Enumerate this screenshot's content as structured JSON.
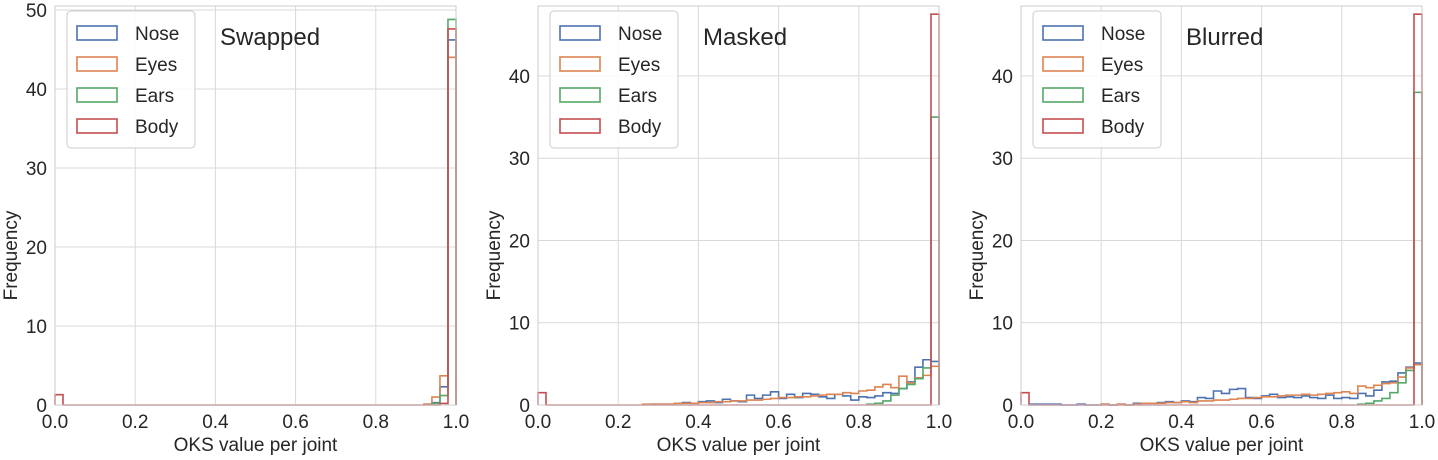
{
  "colors": {
    "Nose": "#4c72b0",
    "Eyes": "#dd8452",
    "Ears": "#55a868",
    "Body": "#c44e52",
    "grid": "#d9d9d9",
    "spine": "#cccccc"
  },
  "chart_data": [
    {
      "type": "histogram",
      "title": "Swapped",
      "xlabel": "OKS value per joint",
      "ylabel": "Frequency",
      "xlim": [
        0.0,
        1.0
      ],
      "ylim": [
        0,
        50.5
      ],
      "xticks": [
        "0.0",
        "0.2",
        "0.4",
        "0.6",
        "0.8",
        "1.0"
      ],
      "yticks": [
        "0",
        "10",
        "20",
        "30",
        "40",
        "50"
      ],
      "grid": true,
      "legend_position": "top-left",
      "bin_width": 0.02,
      "series": [
        {
          "name": "Nose",
          "values": [
            [
              0.92,
              0.1
            ],
            [
              0.94,
              0.3
            ],
            [
              0.96,
              2.3
            ],
            [
              0.98,
              46.2
            ]
          ]
        },
        {
          "name": "Eyes",
          "values": [
            [
              0.92,
              0.1
            ],
            [
              0.94,
              1.0
            ],
            [
              0.96,
              3.7
            ],
            [
              0.98,
              44.0
            ]
          ]
        },
        {
          "name": "Ears",
          "values": [
            [
              0.94,
              0.2
            ],
            [
              0.96,
              1.2
            ],
            [
              0.98,
              48.8
            ]
          ]
        },
        {
          "name": "Body",
          "values": [
            [
              0.0,
              1.3
            ],
            [
              0.96,
              0.2
            ],
            [
              0.98,
              47.6
            ]
          ]
        }
      ]
    },
    {
      "type": "histogram",
      "title": "Masked",
      "xlabel": "OKS value per joint",
      "ylabel": "Frequency",
      "xlim": [
        0.0,
        1.0
      ],
      "ylim": [
        0,
        48.5
      ],
      "xticks": [
        "0.0",
        "0.2",
        "0.4",
        "0.6",
        "0.8",
        "1.0"
      ],
      "yticks": [
        "0",
        "10",
        "20",
        "30",
        "40"
      ],
      "grid": true,
      "legend_position": "top-left",
      "bin_width": 0.02,
      "series": [
        {
          "name": "Nose",
          "values": [
            [
              0.28,
              0.1
            ],
            [
              0.3,
              0.1
            ],
            [
              0.32,
              0.1
            ],
            [
              0.34,
              0.2
            ],
            [
              0.36,
              0.3
            ],
            [
              0.38,
              0.2
            ],
            [
              0.4,
              0.4
            ],
            [
              0.42,
              0.5
            ],
            [
              0.44,
              0.3
            ],
            [
              0.46,
              0.7
            ],
            [
              0.48,
              0.5
            ],
            [
              0.5,
              0.4
            ],
            [
              0.52,
              1.2
            ],
            [
              0.54,
              0.8
            ],
            [
              0.56,
              1.2
            ],
            [
              0.58,
              1.6
            ],
            [
              0.6,
              0.8
            ],
            [
              0.62,
              1.3
            ],
            [
              0.64,
              0.9
            ],
            [
              0.66,
              1.4
            ],
            [
              0.68,
              1.3
            ],
            [
              0.7,
              1.0
            ],
            [
              0.72,
              0.8
            ],
            [
              0.74,
              1.3
            ],
            [
              0.76,
              1.1
            ],
            [
              0.78,
              0.6
            ],
            [
              0.8,
              1.0
            ],
            [
              0.82,
              0.9
            ],
            [
              0.84,
              1.1
            ],
            [
              0.86,
              1.5
            ],
            [
              0.88,
              1.4
            ],
            [
              0.9,
              2.0
            ],
            [
              0.92,
              2.8
            ],
            [
              0.94,
              4.6
            ],
            [
              0.96,
              5.5
            ],
            [
              0.98,
              5.3
            ]
          ]
        },
        {
          "name": "Eyes",
          "values": [
            [
              0.26,
              0.1
            ],
            [
              0.28,
              0.1
            ],
            [
              0.3,
              0.1
            ],
            [
              0.32,
              0.1
            ],
            [
              0.34,
              0.2
            ],
            [
              0.36,
              0.2
            ],
            [
              0.38,
              0.2
            ],
            [
              0.4,
              0.3
            ],
            [
              0.42,
              0.3
            ],
            [
              0.44,
              0.4
            ],
            [
              0.46,
              0.4
            ],
            [
              0.48,
              0.5
            ],
            [
              0.5,
              0.5
            ],
            [
              0.52,
              0.6
            ],
            [
              0.54,
              0.6
            ],
            [
              0.56,
              0.7
            ],
            [
              0.58,
              0.8
            ],
            [
              0.6,
              0.9
            ],
            [
              0.62,
              0.9
            ],
            [
              0.64,
              1.0
            ],
            [
              0.66,
              1.0
            ],
            [
              0.68,
              1.1
            ],
            [
              0.7,
              1.2
            ],
            [
              0.72,
              1.3
            ],
            [
              0.74,
              1.3
            ],
            [
              0.76,
              1.5
            ],
            [
              0.78,
              1.4
            ],
            [
              0.8,
              1.7
            ],
            [
              0.82,
              1.8
            ],
            [
              0.84,
              2.2
            ],
            [
              0.86,
              2.5
            ],
            [
              0.88,
              2.1
            ],
            [
              0.9,
              3.5
            ],
            [
              0.92,
              2.7
            ],
            [
              0.94,
              3.3
            ],
            [
              0.96,
              3.6
            ],
            [
              0.98,
              4.7
            ]
          ]
        },
        {
          "name": "Ears",
          "values": [
            [
              0.82,
              0.1
            ],
            [
              0.84,
              0.2
            ],
            [
              0.86,
              0.5
            ],
            [
              0.88,
              1.2
            ],
            [
              0.9,
              2.0
            ],
            [
              0.92,
              2.5
            ],
            [
              0.94,
              3.2
            ],
            [
              0.96,
              4.5
            ],
            [
              0.98,
              35.0
            ]
          ]
        },
        {
          "name": "Body",
          "values": [
            [
              0.0,
              1.5
            ],
            [
              0.98,
              47.5
            ]
          ]
        }
      ]
    },
    {
      "type": "histogram",
      "title": "Blurred",
      "xlabel": "OKS value per joint",
      "ylabel": "Frequency",
      "xlim": [
        0.0,
        1.0
      ],
      "ylim": [
        0,
        48.5
      ],
      "xticks": [
        "0.0",
        "0.2",
        "0.4",
        "0.6",
        "0.8",
        "1.0"
      ],
      "yticks": [
        "0",
        "10",
        "20",
        "30",
        "40"
      ],
      "grid": true,
      "legend_position": "top-left",
      "bin_width": 0.02,
      "series": [
        {
          "name": "Nose",
          "values": [
            [
              0.02,
              0.1
            ],
            [
              0.04,
              0.1
            ],
            [
              0.06,
              0.1
            ],
            [
              0.08,
              0.1
            ],
            [
              0.14,
              0.1
            ],
            [
              0.2,
              0.1
            ],
            [
              0.24,
              0.1
            ],
            [
              0.28,
              0.2
            ],
            [
              0.3,
              0.2
            ],
            [
              0.32,
              0.2
            ],
            [
              0.34,
              0.3
            ],
            [
              0.36,
              0.4
            ],
            [
              0.38,
              0.3
            ],
            [
              0.4,
              0.5
            ],
            [
              0.42,
              0.4
            ],
            [
              0.44,
              0.9
            ],
            [
              0.46,
              0.8
            ],
            [
              0.48,
              1.7
            ],
            [
              0.5,
              1.4
            ],
            [
              0.52,
              1.9
            ],
            [
              0.54,
              2.0
            ],
            [
              0.56,
              0.9
            ],
            [
              0.58,
              0.8
            ],
            [
              0.6,
              1.1
            ],
            [
              0.62,
              1.3
            ],
            [
              0.64,
              0.9
            ],
            [
              0.66,
              1.0
            ],
            [
              0.68,
              0.9
            ],
            [
              0.7,
              1.1
            ],
            [
              0.72,
              0.9
            ],
            [
              0.74,
              0.8
            ],
            [
              0.76,
              1.2
            ],
            [
              0.78,
              0.8
            ],
            [
              0.8,
              0.9
            ],
            [
              0.82,
              0.8
            ],
            [
              0.84,
              1.4
            ],
            [
              0.86,
              1.1
            ],
            [
              0.88,
              1.8
            ],
            [
              0.9,
              2.8
            ],
            [
              0.92,
              2.9
            ],
            [
              0.94,
              3.9
            ],
            [
              0.96,
              4.6
            ],
            [
              0.98,
              5.1
            ]
          ]
        },
        {
          "name": "Eyes",
          "values": [
            [
              0.2,
              0.1
            ],
            [
              0.24,
              0.1
            ],
            [
              0.28,
              0.1
            ],
            [
              0.3,
              0.2
            ],
            [
              0.32,
              0.2
            ],
            [
              0.34,
              0.2
            ],
            [
              0.36,
              0.3
            ],
            [
              0.38,
              0.3
            ],
            [
              0.4,
              0.4
            ],
            [
              0.42,
              0.3
            ],
            [
              0.44,
              0.5
            ],
            [
              0.46,
              0.5
            ],
            [
              0.48,
              0.6
            ],
            [
              0.5,
              0.6
            ],
            [
              0.52,
              0.7
            ],
            [
              0.54,
              0.8
            ],
            [
              0.56,
              0.8
            ],
            [
              0.58,
              0.9
            ],
            [
              0.6,
              1.0
            ],
            [
              0.62,
              1.0
            ],
            [
              0.64,
              1.1
            ],
            [
              0.66,
              1.2
            ],
            [
              0.68,
              1.2
            ],
            [
              0.7,
              1.3
            ],
            [
              0.72,
              1.2
            ],
            [
              0.74,
              1.3
            ],
            [
              0.76,
              1.4
            ],
            [
              0.78,
              1.5
            ],
            [
              0.8,
              1.6
            ],
            [
              0.82,
              1.4
            ],
            [
              0.84,
              2.3
            ],
            [
              0.86,
              2.1
            ],
            [
              0.88,
              2.4
            ],
            [
              0.9,
              2.6
            ],
            [
              0.92,
              2.7
            ],
            [
              0.94,
              3.4
            ],
            [
              0.96,
              4.5
            ],
            [
              0.98,
              4.9
            ]
          ]
        },
        {
          "name": "Ears",
          "values": [
            [
              0.84,
              0.1
            ],
            [
              0.86,
              0.2
            ],
            [
              0.88,
              0.5
            ],
            [
              0.9,
              0.8
            ],
            [
              0.92,
              1.5
            ],
            [
              0.94,
              2.7
            ],
            [
              0.96,
              4.2
            ],
            [
              0.98,
              38.0
            ]
          ]
        },
        {
          "name": "Body",
          "values": [
            [
              0.0,
              1.5
            ],
            [
              0.98,
              47.5
            ]
          ]
        }
      ]
    }
  ]
}
